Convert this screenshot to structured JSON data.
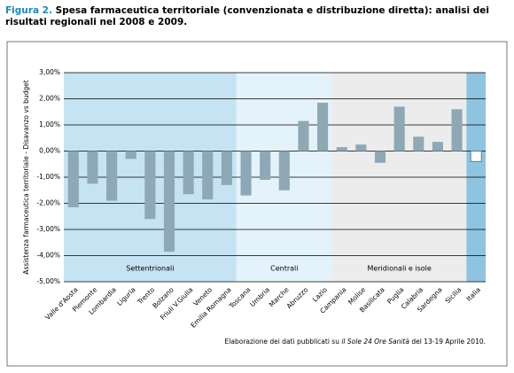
{
  "chart_data": {
    "type": "bar",
    "figure_label": "Figura 2.",
    "title": "Spesa farmaceutica territoriale (convenzionata e distribuzione diretta): analisi dei risultati regionali nel 2008 e 2009.",
    "y_label": "Assistenza farmaceutica territoriale - Disavanzo vs budget",
    "categories": [
      "Valle d'Aosta",
      "Piemonte",
      "Lombardia",
      "Liguria",
      "Trento",
      "Bolzano",
      "Friuli V.Giulia",
      "Veneto",
      "Emilia Romagna",
      "Toscana",
      "Umbria",
      "Marche",
      "Abruzzo",
      "Lazio",
      "Campania",
      "Molise",
      "Basilicata",
      "Puglia",
      "Calabria",
      "Sardegna",
      "Sicilia",
      "Italia"
    ],
    "values": [
      -2.15,
      -1.25,
      -1.9,
      -0.3,
      -2.6,
      -3.85,
      -1.65,
      -1.85,
      -1.3,
      -1.7,
      -1.1,
      -1.5,
      1.15,
      1.85,
      0.15,
      0.25,
      -0.45,
      1.7,
      0.55,
      0.35,
      1.6,
      -0.4
    ],
    "colors": [
      "#8fa8b6",
      "#8fa8b6",
      "#8fa8b6",
      "#8fa8b6",
      "#8fa8b6",
      "#8fa8b6",
      "#8fa8b6",
      "#8fa8b6",
      "#8fa8b6",
      "#8fa8b6",
      "#8fa8b6",
      "#8fa8b6",
      "#8fa8b6",
      "#8fa8b6",
      "#8fa8b6",
      "#8fa8b6",
      "#8fa8b6",
      "#8fa8b6",
      "#8fa8b6",
      "#8fa8b6",
      "#8fa8b6",
      "#ffffff"
    ],
    "label_colors": [
      "#000000",
      "#000000",
      "#000000",
      "#000000",
      "#000000",
      "#000000",
      "#000000",
      "#000000",
      "#000000",
      "#000000",
      "#000000",
      "#000000",
      "#000000",
      "#000000",
      "#000000",
      "#000000",
      "#000000",
      "#000000",
      "#000000",
      "#000000",
      "#000000",
      "#2a7fb8"
    ],
    "regions": [
      {
        "label": "Settentrionali",
        "span": 9,
        "color": "#c6e3f3"
      },
      {
        "label": "Centrali",
        "span": 5,
        "color": "#e4f2fb"
      },
      {
        "label": "Meridionali e isole",
        "span": 7,
        "color": "#ececec"
      },
      {
        "span": 1,
        "color": "#8ec4e0"
      }
    ],
    "ylim": [
      -5,
      3
    ],
    "yticks": [
      {
        "value": 3,
        "label": "3,00%"
      },
      {
        "value": 2,
        "label": "2,00%"
      },
      {
        "value": 1,
        "label": "1,00%"
      },
      {
        "value": 0,
        "label": "0,00%"
      },
      {
        "value": -1,
        "label": "-1,00%"
      },
      {
        "value": -2,
        "label": "-2,00%"
      },
      {
        "value": -3,
        "label": "-3,00%"
      },
      {
        "value": -4,
        "label": "-4,00%"
      },
      {
        "value": -5,
        "label": "-5,00%"
      }
    ],
    "grid": true,
    "source": {
      "prefix": "Elaborazione dei dati pubblicati su ",
      "italic": "il Sole 24 Ore Sanità",
      "suffix": " del 13-19 Aprile 2010."
    }
  }
}
